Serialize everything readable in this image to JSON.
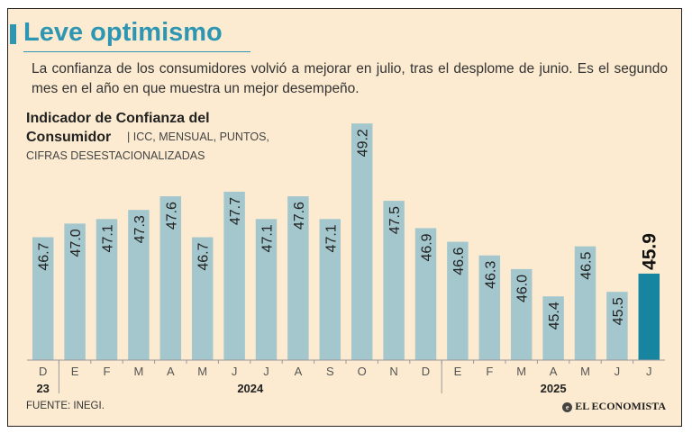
{
  "header": {
    "title": "Leve optimismo",
    "subtitle": "La confianza de los consumidores volvió a mejorar en julio, tras el desplome de junio. Es el segundo mes en el año en que muestra un mejor desempeño."
  },
  "chart_title": {
    "name": "Indicador de Confianza del",
    "name_line2": "Consumidor",
    "note_line1": "| ICC, MENSUAL, PUNTOS,",
    "note_line2": "CIFRAS DESESTACIONALIZADAS"
  },
  "chart_data": {
    "type": "bar",
    "title": "Indicador de Confianza del Consumidor",
    "ylabel": "ICC, mensual, puntos, cifras desestacionalizadas",
    "categories": [
      "D",
      "E",
      "F",
      "M",
      "A",
      "M",
      "J",
      "J",
      "A",
      "S",
      "O",
      "N",
      "D",
      "E",
      "F",
      "M",
      "A",
      "M",
      "J",
      "J"
    ],
    "values": [
      46.7,
      47.0,
      47.1,
      47.3,
      47.6,
      46.7,
      47.7,
      47.1,
      47.6,
      47.1,
      49.2,
      47.5,
      46.9,
      46.6,
      46.3,
      46.0,
      45.4,
      46.5,
      45.5,
      45.9
    ],
    "labels": [
      "46.7",
      "47.0",
      "47.1",
      "47.3",
      "47.6",
      "46.7",
      "47.7",
      "47.1",
      "47.6",
      "47.1",
      "49.2",
      "47.5",
      "46.9",
      "46.6",
      "46.3",
      "46.0",
      "45.4",
      "46.5",
      "45.5",
      "45.9"
    ],
    "year_groups": [
      {
        "label": "23",
        "start": 0,
        "end": 0
      },
      {
        "label": "2024",
        "start": 1,
        "end": 12
      },
      {
        "label": "2025",
        "start": 13,
        "end": 19
      }
    ],
    "highlight_index": 19,
    "ylim": [
      44.0,
      49.5
    ],
    "colors": {
      "bar": "#a3c7cd",
      "highlight": "#1784a0",
      "axis": "#9a9a9a"
    }
  },
  "footer": {
    "source": "FUENTE: INEGI.",
    "brand": "EL ECONOMISTA",
    "brand_icon": "ee-logo-icon"
  }
}
